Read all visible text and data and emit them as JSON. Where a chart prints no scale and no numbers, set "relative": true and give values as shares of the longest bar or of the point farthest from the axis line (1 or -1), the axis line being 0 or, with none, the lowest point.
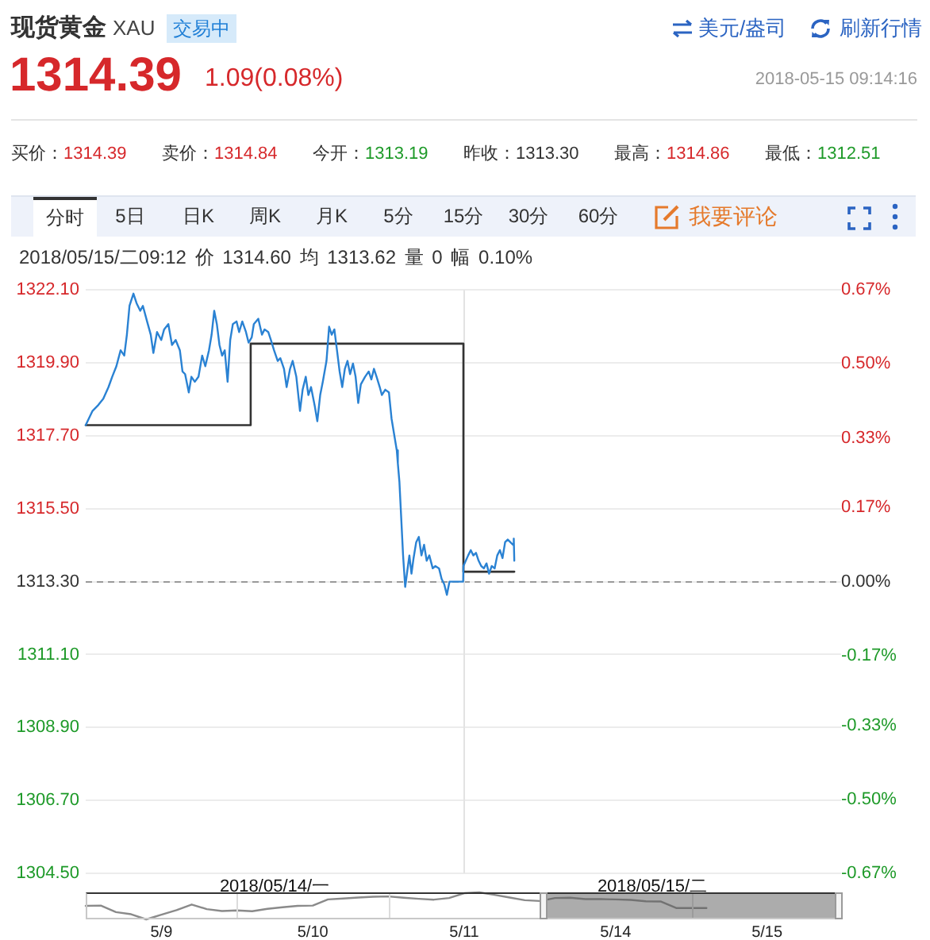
{
  "chart_data": [
    {
      "type": "line",
      "title": "现货黄金 XAU",
      "subtitle": "2018/05/15/二09:12 价 1314.60 均 1313.62 量 0 幅 0.10%",
      "annotations": [
        "交易中",
        "美元/盎司",
        "刷新行情",
        "1314.39",
        "1.09(0.08%)",
        "2018-05-15 09:14:16",
        "买价：1314.39",
        "卖价：1314.84",
        "今开：1313.19",
        "昨收：1313.30",
        "最高：1314.86",
        "最低：1312.51",
        "分时",
        "5日",
        "日K",
        "周K",
        "月K",
        "5分",
        "15分",
        "30分",
        "60分",
        "我要评论"
      ],
      "xlim": [
        "2018-05-14T06:00",
        "2018-05-16T06:00"
      ],
      "xticks": [
        {
          "value": "2018-05-14T18:00",
          "label": "2018/05/14/一"
        },
        {
          "value": "2018-05-15T18:00",
          "label": "2018/05/15/二"
        }
      ],
      "ylim": [
        1304.5,
        1322.1
      ],
      "yticks": [
        {
          "value": 1322.1,
          "label": "1322.10"
        },
        {
          "value": 1319.9,
          "label": "1319.90"
        },
        {
          "value": 1317.7,
          "label": "1317.70"
        },
        {
          "value": 1315.5,
          "label": "1315.50"
        },
        {
          "value": 1313.3,
          "label": "1313.30"
        },
        {
          "value": 1311.1,
          "label": "1311.10"
        },
        {
          "value": 1308.9,
          "label": "1308.90"
        },
        {
          "value": 1306.7,
          "label": "1306.70"
        },
        {
          "value": 1304.5,
          "label": "1304.50"
        }
      ],
      "y2lim": [
        -0.67,
        0.67
      ],
      "y2ticks": [
        {
          "value": 0.67,
          "label": "0.67%"
        },
        {
          "value": 0.5,
          "label": "0.50%"
        },
        {
          "value": 0.33,
          "label": "0.33%"
        },
        {
          "value": 0.17,
          "label": "0.17%"
        },
        {
          "value": 0,
          "label": "0.00%"
        },
        {
          "value": -0.17,
          "label": "-0.17%"
        },
        {
          "value": -0.33,
          "label": "-0.33%"
        },
        {
          "value": -0.5,
          "label": "-0.50%"
        },
        {
          "value": -0.67,
          "label": "-0.67%"
        }
      ],
      "grid": "y",
      "marker": "none",
      "ref_lines": [
        {
          "axis": "y",
          "value": 1313.3,
          "color": "#999999",
          "line_style": "dashed"
        },
        {
          "axis": "x",
          "value": "2018-05-15T06:00",
          "color": "#e3e3e3"
        }
      ],
      "series": [
        {
          "color": "#2a82d3",
          "x": [
            "2018-05-14T06:00",
            "2018-05-14T06:26",
            "2018-05-14T06:46",
            "2018-05-14T07:07",
            "2018-05-14T07:27",
            "2018-05-14T07:41",
            "2018-05-14T07:57",
            "2018-05-14T08:13",
            "2018-05-14T08:27",
            "2018-05-14T08:37",
            "2018-05-14T08:47",
            "2018-05-14T09:02",
            "2018-05-14T09:14",
            "2018-05-14T09:28",
            "2018-05-14T09:38",
            "2018-05-14T09:54",
            "2018-05-14T10:08",
            "2018-05-14T10:18",
            "2018-05-14T10:32",
            "2018-05-14T10:48",
            "2018-05-14T10:59",
            "2018-05-14T11:15",
            "2018-05-14T11:29",
            "2018-05-14T11:43",
            "2018-05-14T11:59",
            "2018-05-14T12:09",
            "2018-05-14T12:19",
            "2018-05-14T12:33",
            "2018-05-14T12:43",
            "2018-05-14T12:56",
            "2018-05-14T13:10",
            "2018-05-14T13:24",
            "2018-05-14T13:36",
            "2018-05-14T13:50",
            "2018-05-14T14:00",
            "2018-05-14T14:10",
            "2018-05-14T14:20",
            "2018-05-14T14:30",
            "2018-05-14T14:40",
            "2018-05-14T14:50",
            "2018-05-14T15:01",
            "2018-05-14T15:11",
            "2018-05-14T15:21",
            "2018-05-14T15:35",
            "2018-05-14T15:45",
            "2018-05-14T15:57",
            "2018-05-14T16:11",
            "2018-05-14T16:21",
            "2018-05-14T16:33",
            "2018-05-14T16:41",
            "2018-05-14T16:58",
            "2018-05-14T17:12",
            "2018-05-14T17:22",
            "2018-05-14T17:36",
            "2018-05-14T17:46",
            "2018-05-14T17:58",
            "2018-05-14T18:12",
            "2018-05-14T18:22",
            "2018-05-14T18:36",
            "2018-05-14T18:46",
            "2018-05-14T18:59",
            "2018-05-14T19:09",
            "2018-05-14T19:23",
            "2018-05-14T19:37",
            "2018-05-14T19:47",
            "2018-05-14T19:59",
            "2018-05-14T20:09",
            "2018-05-14T20:19",
            "2018-05-14T20:33",
            "2018-05-14T20:43",
            "2018-05-14T20:54",
            "2018-05-14T21:04",
            "2018-05-14T21:18",
            "2018-05-14T21:28",
            "2018-05-14T21:38",
            "2018-05-14T21:48",
            "2018-05-14T21:58",
            "2018-05-14T22:08",
            "2018-05-14T22:18",
            "2018-05-14T22:28",
            "2018-05-14T22:38",
            "2018-05-14T22:48",
            "2018-05-14T22:59",
            "2018-05-14T23:09",
            "2018-05-14T23:19",
            "2018-05-14T23:29",
            "2018-05-14T23:45",
            "2018-05-14T23:59",
            "2018-05-15T00:09",
            "2018-05-15T00:19",
            "2018-05-15T00:29",
            "2018-05-15T00:41",
            "2018-05-15T00:49",
            "2018-05-15T01:02",
            "2018-05-15T01:16",
            "2018-05-15T01:26",
            "2018-05-15T01:36",
            "2018-05-15T01:46",
            "2018-05-15T01:50",
            "2018-05-15T01:56",
            "2018-05-15T02:02",
            "2018-05-15T02:10",
            "2018-05-15T02:18",
            "2018-05-15T02:26",
            "2018-05-15T02:34",
            "2018-05-15T02:42",
            "2018-05-15T02:50",
            "2018-05-15T03:00",
            "2018-05-15T03:10",
            "2018-05-15T03:20",
            "2018-05-15T03:30",
            "2018-05-15T03:40",
            "2018-05-15T03:50",
            "2018-05-15T04:03",
            "2018-05-15T04:13",
            "2018-05-15T04:27",
            "2018-05-15T04:37",
            "2018-05-15T04:47",
            "2018-05-15T04:57",
            "2018-05-15T05:07",
            "2018-05-15T05:59",
            "2018-05-15T06:00",
            "2018-05-15T06:18",
            "2018-05-15T06:28",
            "2018-05-15T06:38",
            "2018-05-15T06:48",
            "2018-05-15T06:58",
            "2018-05-15T07:08",
            "2018-05-15T07:18",
            "2018-05-15T07:28",
            "2018-05-15T07:38",
            "2018-05-15T07:48",
            "2018-05-15T07:59",
            "2018-05-15T08:09",
            "2018-05-15T08:19",
            "2018-05-15T08:29",
            "2018-05-15T08:39",
            "2018-05-15T08:49",
            "2018-05-15T08:59",
            "2018-05-15T09:09",
            "2018-05-15T09:12",
            "2018-05-15T09:14"
          ],
          "values": [
            1318.02,
            1318.45,
            1318.61,
            1318.82,
            1319.17,
            1319.48,
            1319.8,
            1320.28,
            1320.12,
            1320.75,
            1321.62,
            1321.99,
            1321.7,
            1321.47,
            1321.62,
            1321.15,
            1320.75,
            1320.2,
            1320.83,
            1320.59,
            1320.91,
            1321.07,
            1320.44,
            1320.59,
            1320.28,
            1319.64,
            1319.56,
            1319.01,
            1319.48,
            1319.33,
            1319.48,
            1320.12,
            1319.8,
            1320.28,
            1320.75,
            1321.47,
            1321.07,
            1320.44,
            1320.12,
            1320.28,
            1319.33,
            1320.59,
            1321.07,
            1321.15,
            1320.83,
            1321.15,
            1320.83,
            1320.51,
            1320.67,
            1321.07,
            1321.23,
            1320.75,
            1320.91,
            1320.83,
            1320.59,
            1320.28,
            1319.96,
            1320.04,
            1319.72,
            1319.17,
            1319.72,
            1319.96,
            1319.48,
            1318.45,
            1319.09,
            1319.48,
            1318.93,
            1319.17,
            1318.61,
            1318.14,
            1318.93,
            1319.33,
            1319.96,
            1320.99,
            1320.75,
            1320.91,
            1320.28,
            1319.64,
            1319.17,
            1319.72,
            1319.96,
            1319.56,
            1319.88,
            1319.48,
            1318.69,
            1319.25,
            1319.48,
            1319.64,
            1319.4,
            1319.72,
            1319.48,
            1319.17,
            1318.93,
            1319.09,
            1319.01,
            1318.22,
            1317.74,
            1317.26,
            1316.87,
            1316.31,
            1315.36,
            1314.09,
            1313.14,
            1313.62,
            1314.09,
            1313.54,
            1314.01,
            1314.49,
            1314.65,
            1314.09,
            1314.41,
            1313.93,
            1314.09,
            1313.7,
            1313.77,
            1313.7,
            1313.38,
            1313.22,
            1312.9,
            1313.3,
            1313.3,
            1313.77,
            1314.09,
            1314.25,
            1314.09,
            1314.17,
            1313.93,
            1313.77,
            1313.7,
            1313.85,
            1313.54,
            1313.77,
            1313.7,
            1314.09,
            1314.25,
            1314.01,
            1314.49,
            1314.57,
            1314.49,
            1314.41,
            1314.6,
            1313.93
          ]
        },
        {
          "type": "step",
          "color": "#333333",
          "x": [
            "2018-05-14T06:00",
            "2018-05-14T16:29",
            "2018-05-15T06:00",
            "2018-05-15T09:14"
          ],
          "values": [
            1318.02,
            1320.48,
            1313.6,
            1313.6
          ]
        }
      ]
    },
    {
      "type": "line",
      "relative": true,
      "color": "#8a8a8a",
      "marker": "none",
      "categories": [
        null,
        null,
        null,
        null,
        null,
        "5/9",
        null,
        null,
        null,
        null,
        null,
        null,
        null,
        null,
        null,
        "5/10",
        null,
        null,
        null,
        null,
        null,
        null,
        null,
        null,
        null,
        "5/11",
        null,
        null,
        null,
        null,
        null,
        null,
        null,
        null,
        null,
        "5/14",
        null,
        null,
        null,
        null,
        null,
        null,
        null,
        null,
        null,
        "5/15",
        null,
        null,
        null,
        null,
        null
      ],
      "values": [
        0.5,
        0.51,
        0.27,
        0.19,
        0,
        0.17,
        0.34,
        0.55,
        0.38,
        0.31,
        0.33,
        0.3,
        0.39,
        0.45,
        0.5,
        0.51,
        0.74,
        0.77,
        0.81,
        0.84,
        0.85,
        0.8,
        0.76,
        0.73,
        0.79,
        0.97,
        1,
        0.91,
        0.81,
        0.71,
        0.68,
        0.79,
        0.8,
        0.75,
        0.75,
        0.74,
        0.72,
        0.67,
        0.66,
        0.42,
        0.42,
        0.42,
        null,
        null,
        null,
        null,
        null,
        null,
        null,
        null,
        null
      ]
    }
  ]
}
